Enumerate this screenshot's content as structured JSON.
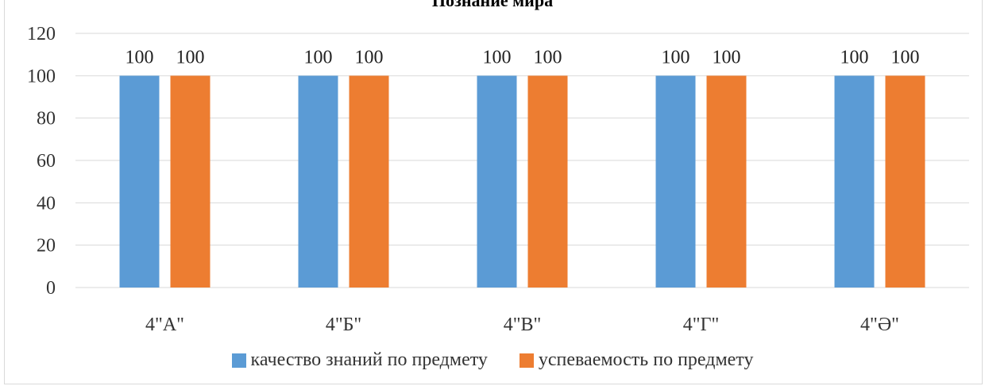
{
  "chart_data": {
    "type": "bar",
    "title": "Познание мира",
    "categories": [
      "4\"А\"",
      "4\"Б\"",
      "4\"В\"",
      "4\"Г\"",
      "4\"Ә\""
    ],
    "series": [
      {
        "name": "качество знаний по предмету",
        "values": [
          100,
          100,
          100,
          100,
          100
        ],
        "color": "#5b9bd5"
      },
      {
        "name": "успеваемость по предмету",
        "values": [
          100,
          100,
          100,
          100,
          100
        ],
        "color": "#ed7d31"
      }
    ],
    "ylim": [
      0,
      120
    ],
    "yticks": [
      0,
      20,
      40,
      60,
      80,
      100,
      120
    ],
    "grid": true,
    "legend_position": "bottom"
  }
}
